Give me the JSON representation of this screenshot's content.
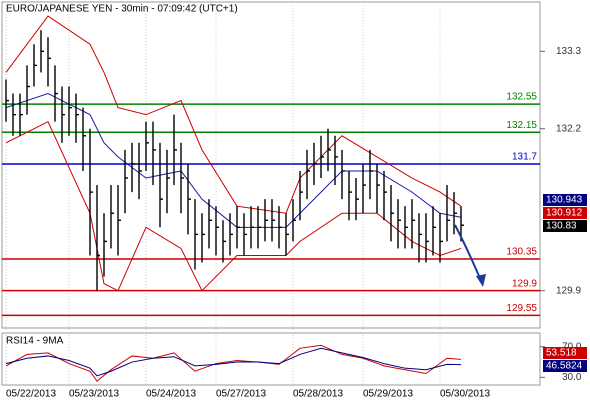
{
  "chart_data": [
    {
      "type": "hlc",
      "title": "EURO/JAPANESE YEN - 30min - 07:09:42 (UTC+1)",
      "color": "#000000",
      "categories": [
        "05/22/2013",
        null,
        null,
        null,
        null,
        null,
        null,
        null,
        null,
        "05/23/2013",
        null,
        null,
        null,
        null,
        null,
        null,
        null,
        null,
        null,
        null,
        "05/24/2013",
        null,
        null,
        null,
        null,
        null,
        null,
        null,
        null,
        null,
        "05/27/2013",
        null,
        null,
        null,
        null,
        null,
        null,
        null,
        null,
        null,
        null,
        "05/28/2013",
        null,
        null,
        null,
        null,
        null,
        null,
        null,
        null,
        null,
        "05/29/2013",
        null,
        null,
        null,
        null,
        null,
        null,
        null,
        null,
        null,
        null,
        "05/30/2013",
        null,
        null,
        null
      ],
      "high": [
        132.9,
        132.7,
        132.7,
        133.1,
        133.4,
        133.6,
        133.5,
        133.1,
        132.8,
        132.8,
        132.7,
        132.5,
        132.2,
        131.4,
        131.0,
        131.4,
        131.4,
        131.9,
        132.0,
        132.0,
        132.3,
        132.3,
        132.0,
        131.9,
        132.4,
        132.0,
        131.7,
        131.2,
        131.0,
        131.2,
        131.1,
        130.9,
        131.0,
        131.1,
        131.0,
        131.1,
        131.1,
        131.2,
        131.2,
        131.1,
        131.0,
        131.2,
        131.6,
        131.9,
        132.0,
        132.1,
        132.2,
        132.1,
        131.9,
        131.6,
        131.5,
        131.7,
        131.9,
        131.7,
        131.6,
        131.4,
        131.2,
        131.1,
        131.2,
        131.0,
        131.0,
        131.1,
        131.0,
        131.4,
        131.3,
        131.1
      ],
      "low": [
        132.3,
        132.1,
        132.1,
        132.4,
        132.8,
        133.0,
        132.8,
        132.3,
        132.0,
        132.1,
        132.0,
        131.6,
        130.4,
        129.9,
        130.1,
        130.5,
        130.4,
        131.0,
        131.3,
        131.2,
        131.6,
        131.4,
        130.8,
        131.0,
        131.4,
        131.0,
        130.7,
        130.2,
        130.3,
        130.5,
        130.4,
        130.3,
        130.4,
        130.5,
        130.4,
        130.5,
        130.5,
        130.6,
        130.6,
        130.5,
        130.4,
        130.6,
        130.9,
        131.2,
        131.4,
        131.5,
        131.6,
        131.4,
        131.2,
        130.9,
        130.9,
        131.0,
        131.2,
        131.0,
        130.9,
        130.6,
        130.5,
        130.5,
        130.5,
        130.3,
        130.3,
        130.4,
        130.3,
        130.6,
        130.7,
        130.6
      ],
      "close": [
        132.6,
        132.4,
        132.4,
        132.8,
        133.1,
        133.3,
        133.2,
        132.7,
        132.4,
        132.5,
        132.4,
        132.1,
        131.3,
        130.4,
        130.6,
        131.0,
        130.9,
        131.5,
        131.7,
        131.6,
        132.0,
        131.9,
        131.2,
        131.5,
        131.9,
        131.5,
        131.2,
        130.7,
        130.7,
        130.9,
        130.8,
        130.6,
        130.7,
        130.8,
        130.7,
        130.8,
        130.8,
        130.9,
        130.9,
        130.8,
        130.7,
        130.9,
        131.3,
        131.6,
        131.7,
        131.8,
        131.9,
        131.8,
        131.6,
        131.3,
        131.2,
        131.4,
        131.6,
        131.4,
        131.3,
        131.0,
        130.9,
        130.8,
        130.9,
        130.7,
        130.6,
        130.8,
        130.6,
        130.9,
        131.0,
        130.83
      ],
      "lines": [
        {
          "color": "#cc0000",
          "x": [
            0,
            6,
            12,
            14,
            16,
            20,
            25,
            28,
            33,
            40,
            42,
            48,
            53,
            58,
            62,
            65
          ],
          "values": [
            133.0,
            133.8,
            133.4,
            133.0,
            132.5,
            132.4,
            132.6,
            131.9,
            131.1,
            131.0,
            131.5,
            132.1,
            131.8,
            131.5,
            131.3,
            131.1
          ]
        },
        {
          "color": "#cc0000",
          "x": [
            0,
            6,
            12,
            14,
            16,
            20,
            25,
            28,
            33,
            40,
            42,
            48,
            53,
            58,
            62,
            65
          ],
          "values": [
            132.0,
            132.3,
            131.0,
            130.0,
            129.9,
            130.8,
            130.5,
            129.9,
            130.4,
            130.4,
            130.6,
            131.0,
            131.0,
            130.6,
            130.4,
            130.5
          ]
        },
        {
          "color": "#1a1aa6",
          "x": [
            0,
            6,
            12,
            14,
            16,
            20,
            25,
            28,
            33,
            40,
            42,
            48,
            53,
            58,
            62,
            65
          ],
          "values": [
            132.5,
            132.7,
            132.4,
            132.0,
            131.8,
            131.5,
            131.6,
            131.2,
            130.8,
            130.8,
            131.0,
            131.6,
            131.6,
            131.3,
            131.0,
            130.943
          ]
        }
      ],
      "levels": [
        {
          "value": 132.55,
          "color": "#008000"
        },
        {
          "value": 132.15,
          "color": "#008000"
        },
        {
          "value": 131.7,
          "color": "#0000cc"
        },
        {
          "value": 130.35,
          "color": "#cc0000"
        },
        {
          "value": 129.9,
          "color": "#cc0000"
        },
        {
          "value": 129.55,
          "color": "#cc0000"
        }
      ],
      "price_labels": [
        {
          "value": 130.943,
          "color": "#000080"
        },
        {
          "value": 130.912,
          "color": "#cc0000"
        },
        {
          "value": 130.83,
          "color": "#000000"
        }
      ],
      "ylim": [
        129.37,
        134.0
      ],
      "yticks": [
        133.3,
        132.2,
        129.9
      ]
    },
    {
      "type": "line",
      "title": "RSI14 - 9MA",
      "series": [
        {
          "color": "#cc0000",
          "x": [
            0,
            3,
            6,
            9,
            12,
            13,
            15,
            18,
            21,
            24,
            27,
            30,
            33,
            36,
            39,
            42,
            45,
            48,
            51,
            54,
            57,
            60,
            63,
            65
          ],
          "values": [
            45,
            60,
            62,
            48,
            38,
            25,
            40,
            58,
            55,
            62,
            38,
            48,
            52,
            50,
            47,
            68,
            72,
            60,
            55,
            45,
            40,
            35,
            55,
            53.518
          ]
        },
        {
          "color": "#000080",
          "x": [
            0,
            3,
            6,
            9,
            12,
            13,
            15,
            18,
            21,
            24,
            27,
            30,
            33,
            36,
            39,
            42,
            45,
            48,
            51,
            54,
            57,
            60,
            63,
            65
          ],
          "values": [
            48,
            55,
            58,
            52,
            42,
            32,
            38,
            50,
            55,
            57,
            45,
            47,
            50,
            50,
            48,
            60,
            68,
            62,
            56,
            48,
            42,
            40,
            47,
            46.5824
          ]
        }
      ],
      "ylim": [
        20,
        88
      ],
      "yticks": [
        {
          "value": 70,
          "label": "70.0"
        },
        {
          "value": 30,
          "label": "30.0"
        }
      ]
    }
  ]
}
